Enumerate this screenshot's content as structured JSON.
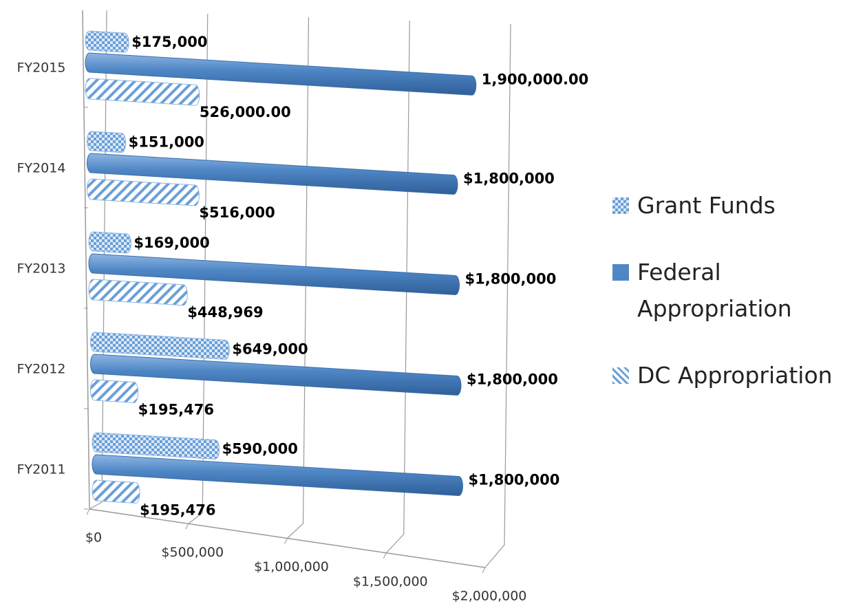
{
  "chart_data": {
    "type": "bar3d_horizontal",
    "categories": [
      "FY2011",
      "FY2012",
      "FY2013",
      "FY2014",
      "FY2015"
    ],
    "series": [
      {
        "name": "Grant Funds",
        "color": "#6a9fd8",
        "values": [
          590000,
          649000,
          169000,
          151000,
          175000
        ],
        "value_labels": [
          "$590,000",
          "$649,000",
          "$169,000",
          "$151,000",
          "$175,000"
        ]
      },
      {
        "name": "Federal Appropriation",
        "color": "#4f87c6",
        "values": [
          1800000,
          1800000,
          1800000,
          1800000,
          1900000
        ],
        "value_labels": [
          "$1,800,000",
          "$1,800,000",
          "$1,800,000",
          "$1,800,000",
          "1,900,000.00"
        ]
      },
      {
        "name": "DC Appropriation",
        "color": "#6a9fd8",
        "values": [
          195476,
          195476,
          448969,
          516000,
          526000
        ],
        "value_labels": [
          "$195,476",
          "$195,476",
          "$448,969",
          "$516,000",
          "526,000.00"
        ]
      }
    ],
    "xlim": [
      0,
      2000000
    ],
    "xticks": [
      {
        "value": 0,
        "label": "$0"
      },
      {
        "value": 500000,
        "label": "$500,000"
      },
      {
        "value": 1000000,
        "label": "$1,000,000"
      },
      {
        "value": 1500000,
        "label": "$1,500,000"
      },
      {
        "value": 2000000,
        "label": "$2,000,000"
      }
    ],
    "grid": true,
    "legend": "right"
  }
}
